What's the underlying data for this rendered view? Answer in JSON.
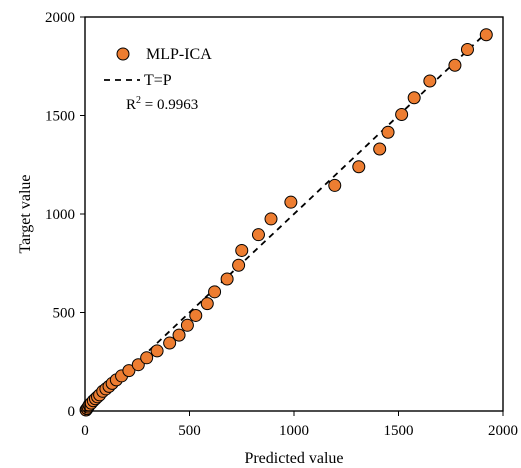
{
  "chart_data": {
    "type": "scatter",
    "title": "",
    "xlabel": "Predicted value",
    "ylabel": "Target value",
    "xlim": [
      0,
      2000
    ],
    "ylim": [
      0,
      2000
    ],
    "xticks": [
      0,
      500,
      1000,
      1500,
      2000
    ],
    "yticks": [
      0,
      500,
      1000,
      1500,
      2000
    ],
    "xtick_labels": [
      "0",
      "500",
      "1000",
      "1500",
      "2000"
    ],
    "ytick_labels": [
      "0",
      "500",
      "1000",
      "1500",
      "2000"
    ],
    "grid": false,
    "legend_position": "top-left",
    "series": [
      {
        "name": "MLP-ICA",
        "kind": "points",
        "color": "#ed7d31",
        "edge_color": "#000000",
        "points": [
          [
            5,
            5
          ],
          [
            10,
            12
          ],
          [
            15,
            20
          ],
          [
            20,
            30
          ],
          [
            30,
            40
          ],
          [
            40,
            52
          ],
          [
            50,
            62
          ],
          [
            60,
            72
          ],
          [
            70,
            82
          ],
          [
            85,
            100
          ],
          [
            100,
            112
          ],
          [
            115,
            125
          ],
          [
            130,
            140
          ],
          [
            150,
            158
          ],
          [
            175,
            178
          ],
          [
            210,
            205
          ],
          [
            255,
            235
          ],
          [
            295,
            270
          ],
          [
            345,
            305
          ],
          [
            405,
            345
          ],
          [
            450,
            385
          ],
          [
            490,
            435
          ],
          [
            530,
            485
          ],
          [
            585,
            545
          ],
          [
            620,
            605
          ],
          [
            680,
            670
          ],
          [
            735,
            740
          ],
          [
            750,
            815
          ],
          [
            830,
            895
          ],
          [
            890,
            975
          ],
          [
            985,
            1060
          ],
          [
            1195,
            1145
          ],
          [
            1310,
            1240
          ],
          [
            1410,
            1330
          ],
          [
            1450,
            1415
          ],
          [
            1515,
            1505
          ],
          [
            1575,
            1590
          ],
          [
            1650,
            1675
          ],
          [
            1770,
            1755
          ],
          [
            1830,
            1835
          ],
          [
            1920,
            1910
          ]
        ]
      },
      {
        "name": "T=P",
        "kind": "line",
        "color": "#000000",
        "dashed": true,
        "points": [
          [
            0,
            0
          ],
          [
            1920,
            1920
          ]
        ]
      }
    ],
    "annotations": [
      {
        "text_main": "R",
        "text_sup": "2",
        "text_tail": " = 0.9963"
      }
    ]
  }
}
